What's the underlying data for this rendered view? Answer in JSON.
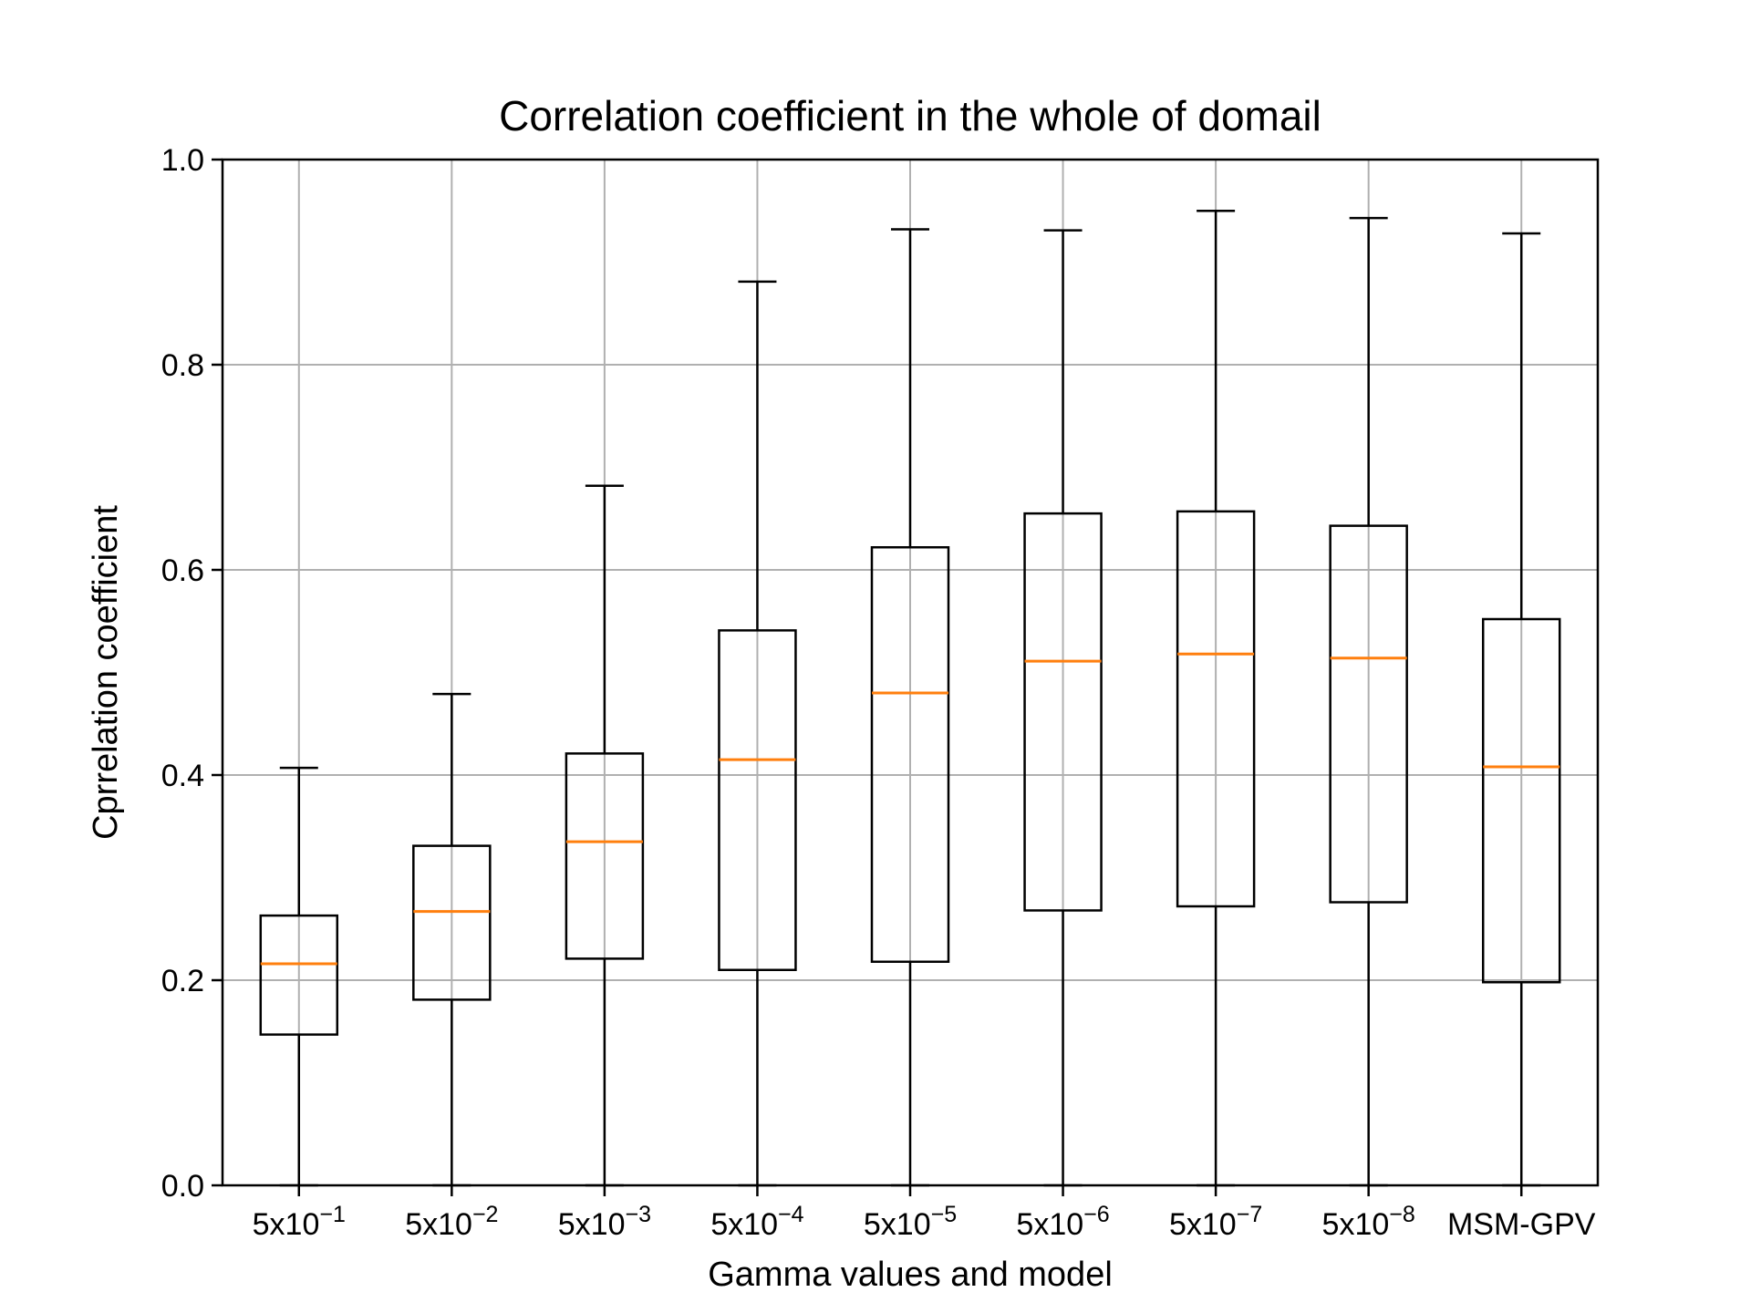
{
  "chart_data": {
    "type": "boxplot",
    "title": "Correlation coefficient in the whole of domail",
    "xlabel": "Gamma values and model",
    "ylabel": "Cprrelation coefficient",
    "ylim": [
      0.0,
      1.0
    ],
    "yticks": [
      "0.0",
      "0.2",
      "0.4",
      "0.6",
      "0.8",
      "1.0"
    ],
    "grid": true,
    "categories": [
      {
        "base": "5x10",
        "exp": "−1"
      },
      {
        "base": "5x10",
        "exp": "−2"
      },
      {
        "base": "5x10",
        "exp": "−3"
      },
      {
        "base": "5x10",
        "exp": "−4"
      },
      {
        "base": "5x10",
        "exp": "−5"
      },
      {
        "base": "5x10",
        "exp": "−6"
      },
      {
        "base": "5x10",
        "exp": "−7"
      },
      {
        "base": "5x10",
        "exp": "−8"
      },
      {
        "base": "MSM-GPV",
        "exp": ""
      }
    ],
    "boxes": [
      {
        "whisker_low": 0.0,
        "q1": 0.147,
        "median": 0.216,
        "q3": 0.263,
        "whisker_high": 0.407
      },
      {
        "whisker_low": 0.0,
        "q1": 0.181,
        "median": 0.267,
        "q3": 0.331,
        "whisker_high": 0.479
      },
      {
        "whisker_low": 0.0,
        "q1": 0.221,
        "median": 0.335,
        "q3": 0.421,
        "whisker_high": 0.682
      },
      {
        "whisker_low": 0.0,
        "q1": 0.21,
        "median": 0.415,
        "q3": 0.541,
        "whisker_high": 0.881
      },
      {
        "whisker_low": 0.0,
        "q1": 0.218,
        "median": 0.48,
        "q3": 0.622,
        "whisker_high": 0.932
      },
      {
        "whisker_low": 0.0,
        "q1": 0.268,
        "median": 0.511,
        "q3": 0.655,
        "whisker_high": 0.931
      },
      {
        "whisker_low": 0.0,
        "q1": 0.272,
        "median": 0.518,
        "q3": 0.657,
        "whisker_high": 0.95
      },
      {
        "whisker_low": 0.0,
        "q1": 0.276,
        "median": 0.514,
        "q3": 0.643,
        "whisker_high": 0.943
      },
      {
        "whisker_low": 0.0,
        "q1": 0.198,
        "median": 0.408,
        "q3": 0.552,
        "whisker_high": 0.928
      }
    ],
    "colors": {
      "box": "#000000",
      "median": "#ff7f0e",
      "grid": "#b0b0b0",
      "axes": "#000000"
    }
  }
}
